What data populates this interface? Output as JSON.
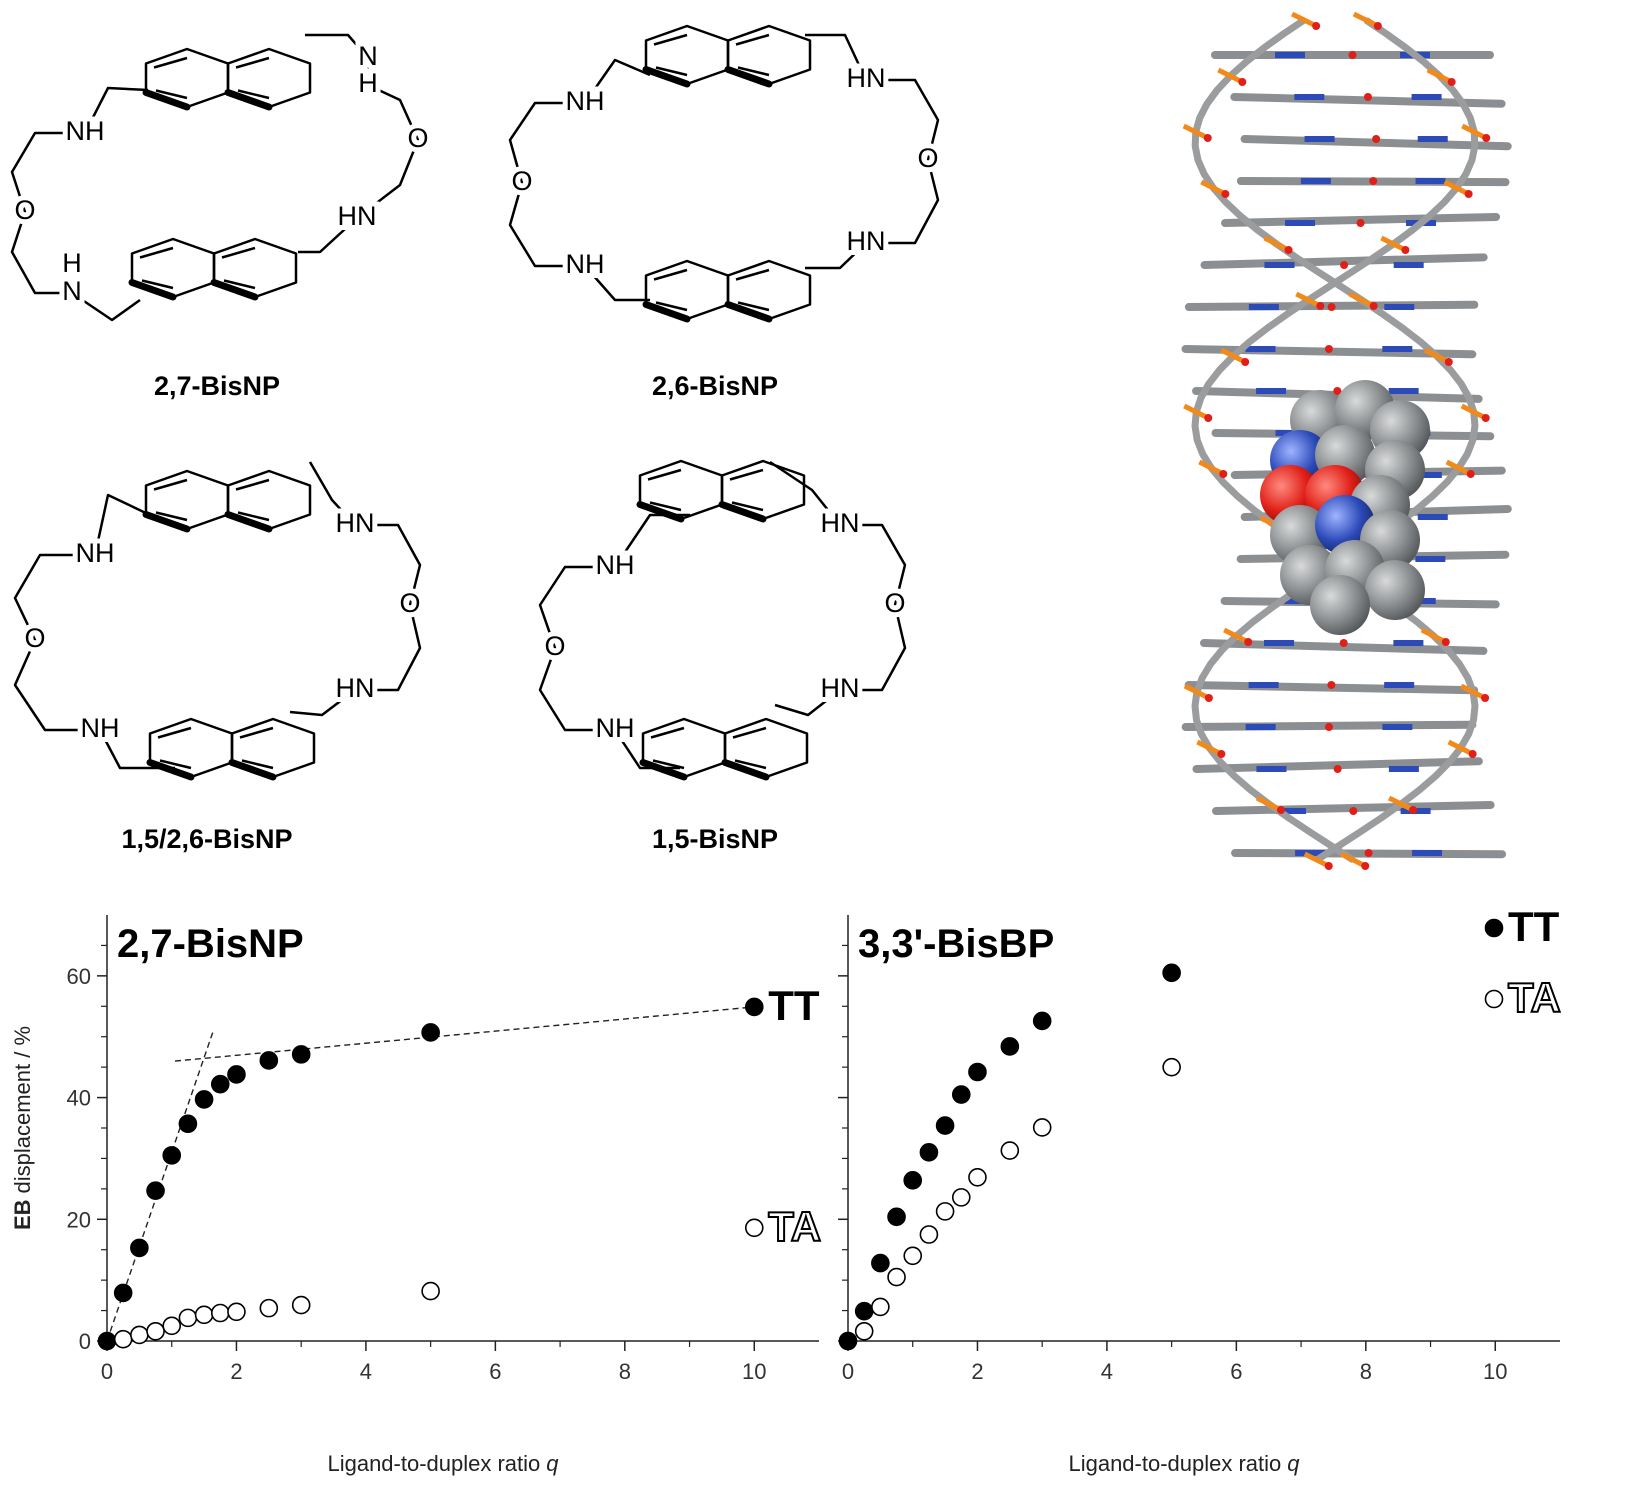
{
  "structures": [
    {
      "label": "2,7-BisNP",
      "atoms": [
        "NH",
        "O",
        "H",
        "N",
        "N",
        "H",
        "O",
        "HN"
      ]
    },
    {
      "label": "2,6-BisNP",
      "atoms": [
        "NH",
        "O",
        "NH",
        "HN",
        "O",
        "HN"
      ]
    },
    {
      "label": "1,5/2,6-BisNP",
      "atoms": [
        "NH",
        "O",
        "NH",
        "HN",
        "O",
        "HN"
      ]
    },
    {
      "label": "1,5-BisNP",
      "atoms": [
        "NH",
        "O",
        "NH",
        "HN",
        "O",
        "HN"
      ]
    }
  ],
  "chart_data": [
    {
      "type": "scatter",
      "title": "2,7-BisNP",
      "xlabel": "Ligand-to-duplex ratio",
      "xlabel_italic": "q",
      "ylabel_bold": "EB",
      "ylabel": "displacement / %",
      "xlim": [
        0,
        11
      ],
      "ylim": [
        0,
        70
      ],
      "xticks": [
        0,
        2,
        4,
        6,
        8,
        10
      ],
      "yticks": [
        0,
        20,
        40,
        60
      ],
      "minor_xticks": [
        1,
        3,
        5,
        7,
        9
      ],
      "minor_yticks": [
        5,
        10,
        15,
        25,
        30,
        35,
        45,
        50,
        55,
        65
      ],
      "ytick_labels": true,
      "legend": "label_at_end",
      "series": [
        {
          "name": "TT",
          "color": "#000000",
          "edgecolor": "#000000",
          "x": [
            0,
            0.25,
            0.5,
            0.75,
            1,
            1.25,
            1.5,
            1.75,
            2,
            2.5,
            3,
            5,
            10
          ],
          "values": [
            0,
            7.9,
            15.3,
            24.7,
            30.5,
            35.7,
            39.7,
            42.2,
            43.8,
            46.1,
            47.1,
            50.7,
            54.9
          ]
        },
        {
          "name": "TA",
          "color": "#ffffff",
          "edgecolor": "#000000",
          "x": [
            0.25,
            0.5,
            0.75,
            1,
            1.25,
            1.5,
            1.75,
            2,
            2.5,
            3,
            5,
            10
          ],
          "values": [
            0.3,
            1.0,
            1.6,
            2.5,
            3.8,
            4.3,
            4.6,
            4.8,
            5.4,
            5.9,
            8.2,
            18.6
          ]
        }
      ],
      "fit_lines": [
        {
          "x": [
            0,
            1.64
          ],
          "y": [
            0,
            50.9
          ]
        },
        {
          "x": [
            1.05,
            10
          ],
          "y": [
            46,
            54.9
          ]
        }
      ]
    },
    {
      "type": "scatter",
      "title": "3,3'-BisBP",
      "xlabel": "Ligand-to-duplex ratio",
      "xlabel_italic": "q",
      "xlim": [
        0,
        11
      ],
      "ylim": [
        0,
        70
      ],
      "xticks": [
        0,
        2,
        4,
        6,
        8,
        10
      ],
      "yticks": [
        0,
        20,
        40,
        60
      ],
      "minor_xticks": [
        1,
        3,
        5,
        7,
        9
      ],
      "minor_yticks": [
        5,
        10,
        15,
        25,
        30,
        35,
        45,
        50,
        55,
        65
      ],
      "ytick_labels": false,
      "legend": "upper right",
      "series": [
        {
          "name": "TT",
          "color": "#000000",
          "edgecolor": "#000000",
          "x": [
            0,
            0.25,
            0.5,
            0.75,
            1,
            1.25,
            1.5,
            1.75,
            2,
            2.5,
            3,
            5
          ],
          "values": [
            0,
            4.9,
            12.8,
            20.4,
            26.4,
            31.0,
            35.4,
            40.5,
            44.2,
            48.4,
            52.6,
            60.5
          ]
        },
        {
          "name": "TA",
          "color": "#ffffff",
          "edgecolor": "#000000",
          "x": [
            0.25,
            0.5,
            0.75,
            1,
            1.25,
            1.5,
            1.75,
            2,
            2.5,
            3,
            5
          ],
          "values": [
            1.6,
            5.6,
            10.5,
            14.0,
            17.5,
            21.3,
            23.6,
            26.9,
            31.3,
            35.1,
            45.0
          ]
        }
      ]
    }
  ]
}
